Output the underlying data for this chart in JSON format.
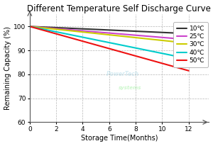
{
  "title": "Different Temperature Self Discharge Curve",
  "xlabel": "Storage Time(Months)",
  "ylabel": "Remaining Capacity (%)",
  "xlim": [
    0,
    13.5
  ],
  "ylim": [
    60,
    105
  ],
  "xticks": [
    0,
    2,
    4,
    6,
    8,
    10,
    12
  ],
  "yticks": [
    60,
    70,
    80,
    90,
    100
  ],
  "curves": [
    {
      "label": "10℃",
      "color": "#333333",
      "x": [
        0,
        12
      ],
      "y": [
        100,
        97.0
      ]
    },
    {
      "label": "25℃",
      "color": "#cc44cc",
      "x": [
        0,
        12
      ],
      "y": [
        100,
        94.5
      ]
    },
    {
      "label": "30℃",
      "color": "#cccc00",
      "x": [
        0,
        12
      ],
      "y": [
        100,
        93.0
      ]
    },
    {
      "label": "40℃",
      "color": "#00cccc",
      "x": [
        0,
        12
      ],
      "y": [
        100,
        86.5
      ]
    },
    {
      "label": "50℃",
      "color": "#ee1111",
      "x": [
        0,
        12
      ],
      "y": [
        100,
        81.5
      ]
    }
  ],
  "grid_color": "#aaaaaa",
  "grid_linestyle": "--",
  "background_color": "#ffffff",
  "title_fontsize": 8.5,
  "axis_fontsize": 7.0,
  "tick_fontsize": 6.5,
  "legend_fontsize": 6.5,
  "linewidth": 1.5
}
